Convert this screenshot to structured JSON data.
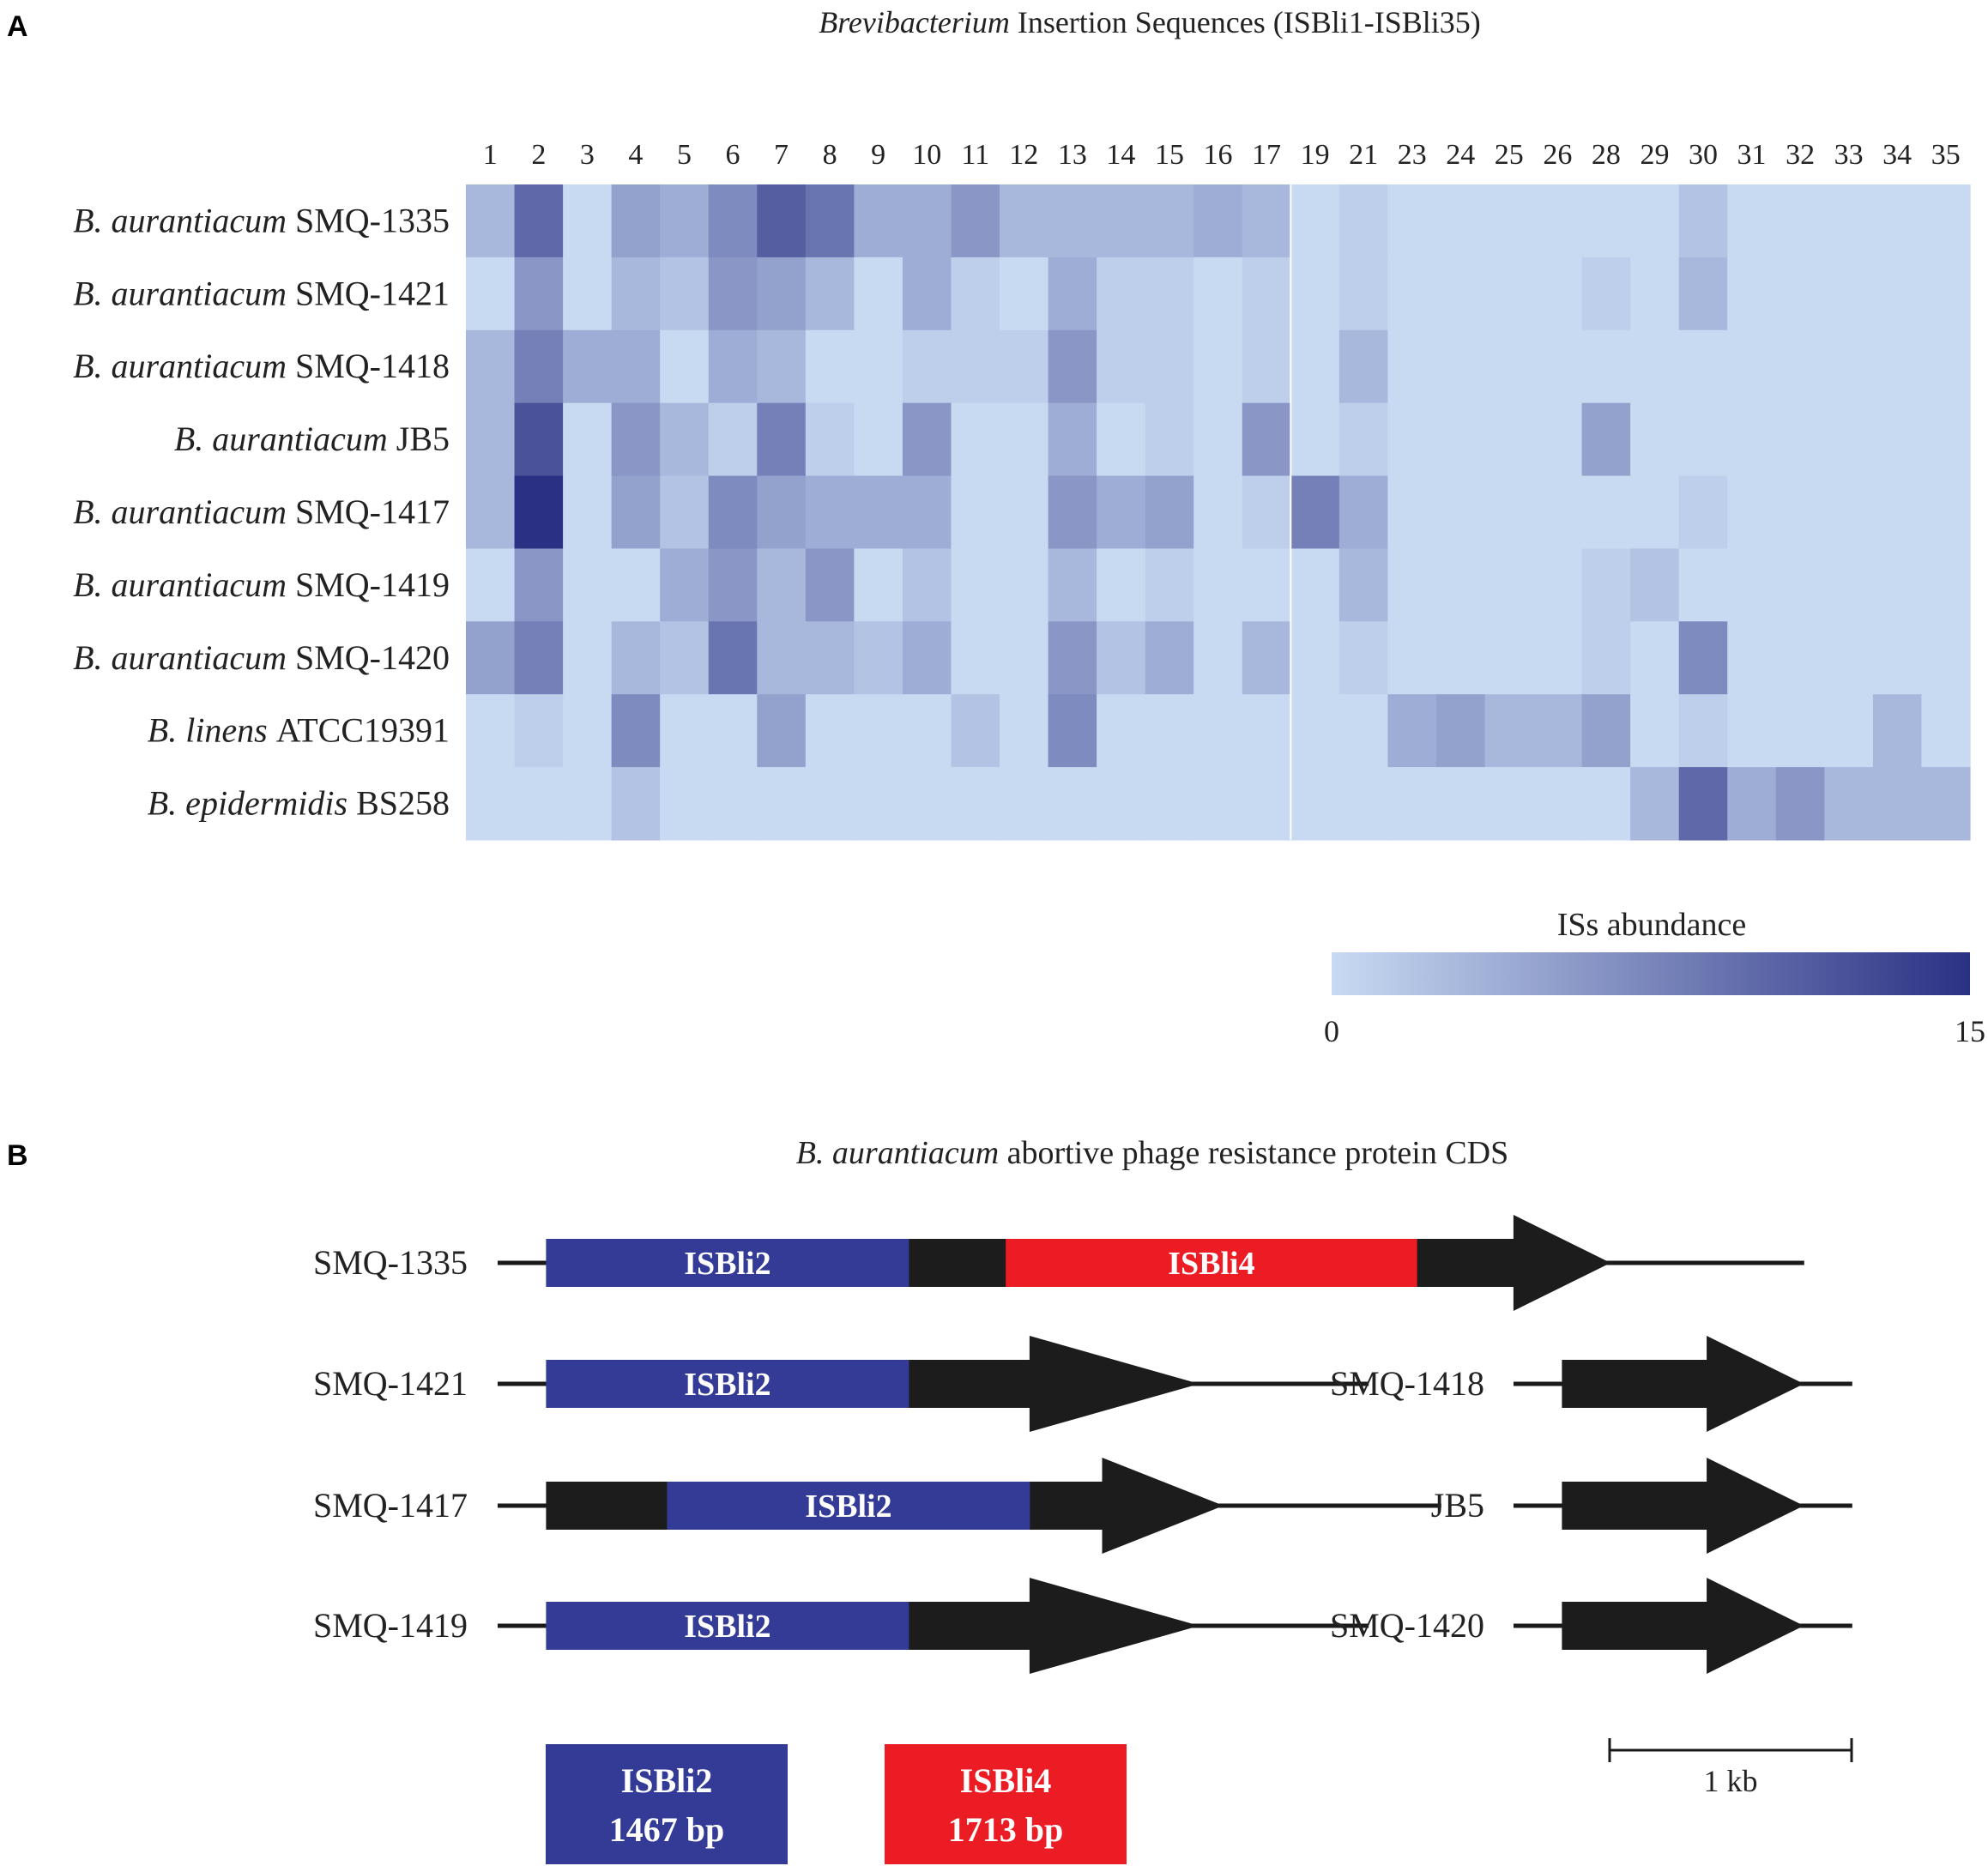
{
  "panel_a": {
    "letter": "A",
    "title_italic": "Brevibacterium",
    "title_rest": " Insertion Sequences (ISBli1-ISBli35)"
  },
  "panel_b": {
    "letter": "B",
    "title_italic": "B. aurantiacum",
    "title_rest": " abortive phage resistance protein CDS"
  },
  "colors": {
    "low": "#c8daf2",
    "high": "#2a3184",
    "isbli2": "#333b97",
    "isbli4": "#ec1c24",
    "cds": "#1c1c1c",
    "line": "#1a1a1a"
  },
  "chart_data": [
    {
      "type": "heatmap",
      "title": "Brevibacterium Insertion Sequences (ISBli1-ISBli35)",
      "columns": [
        "1",
        "2",
        "3",
        "4",
        "5",
        "6",
        "7",
        "8",
        "9",
        "10",
        "11",
        "12",
        "13",
        "14",
        "15",
        "16",
        "17",
        "19",
        "21",
        "23",
        "24",
        "25",
        "26",
        "28",
        "29",
        "30",
        "31",
        "32",
        "33",
        "34",
        "35"
      ],
      "rows": [
        {
          "species": "B. aurantiacum",
          "strain": "SMQ-1335"
        },
        {
          "species": "B. aurantiacum",
          "strain": "SMQ-1421"
        },
        {
          "species": "B. aurantiacum",
          "strain": "SMQ-1418"
        },
        {
          "species": "B. aurantiacum",
          "strain": "JB5"
        },
        {
          "species": "B. aurantiacum",
          "strain": "SMQ-1417"
        },
        {
          "species": "B. aurantiacum",
          "strain": "SMQ-1419"
        },
        {
          "species": "B. aurantiacum",
          "strain": "SMQ-1420"
        },
        {
          "species": "B. linens",
          "strain": "ATCC19391"
        },
        {
          "species": "B. epidermidis",
          "strain": "BS258"
        }
      ],
      "values": [
        [
          3,
          10,
          0,
          5,
          4,
          7,
          11,
          9,
          4,
          4,
          6,
          3,
          3,
          3,
          3,
          4,
          3,
          0,
          1,
          0,
          0,
          0,
          0,
          0,
          0,
          2,
          0,
          0,
          0,
          0,
          0
        ],
        [
          0,
          6,
          0,
          3,
          2,
          6,
          5,
          3,
          0,
          4,
          1,
          0,
          4,
          1,
          1,
          0,
          1,
          0,
          1,
          0,
          0,
          0,
          0,
          1,
          0,
          3,
          0,
          0,
          0,
          0,
          0
        ],
        [
          3,
          8,
          4,
          4,
          0,
          4,
          3,
          0,
          0,
          1,
          1,
          1,
          6,
          1,
          1,
          0,
          1,
          0,
          3,
          0,
          0,
          0,
          0,
          0,
          0,
          0,
          0,
          0,
          0,
          0,
          0
        ],
        [
          3,
          12,
          0,
          6,
          3,
          1,
          8,
          1,
          0,
          6,
          0,
          0,
          4,
          0,
          1,
          0,
          6,
          0,
          1,
          0,
          0,
          0,
          0,
          5,
          0,
          0,
          0,
          0,
          0,
          0,
          0
        ],
        [
          3,
          15,
          0,
          5,
          2,
          7,
          5,
          4,
          4,
          4,
          0,
          0,
          6,
          4,
          5,
          0,
          1,
          8,
          4,
          0,
          0,
          0,
          0,
          0,
          0,
          1,
          0,
          0,
          0,
          0,
          0
        ],
        [
          0,
          6,
          0,
          0,
          4,
          6,
          3,
          6,
          0,
          2,
          0,
          0,
          3,
          0,
          1,
          0,
          0,
          0,
          3,
          0,
          0,
          0,
          0,
          1,
          2,
          0,
          0,
          0,
          0,
          0,
          0
        ],
        [
          5,
          8,
          0,
          3,
          2,
          9,
          3,
          3,
          2,
          4,
          0,
          0,
          6,
          2,
          4,
          0,
          3,
          0,
          1,
          0,
          0,
          0,
          0,
          1,
          0,
          7,
          0,
          0,
          0,
          0,
          0
        ],
        [
          0,
          1,
          0,
          7,
          0,
          0,
          5,
          0,
          0,
          0,
          2,
          0,
          7,
          0,
          0,
          0,
          0,
          0,
          0,
          4,
          5,
          3,
          3,
          5,
          0,
          1,
          0,
          0,
          0,
          3,
          0
        ],
        [
          0,
          0,
          0,
          2,
          0,
          0,
          0,
          0,
          0,
          0,
          0,
          0,
          0,
          0,
          0,
          0,
          0,
          0,
          0,
          0,
          0,
          0,
          0,
          0,
          3,
          10,
          4,
          6,
          3,
          3,
          3
        ]
      ],
      "colorbar": {
        "label": "ISs abundance",
        "min": 0,
        "max": 15,
        "min_label": "0",
        "max_label": "15"
      }
    },
    {
      "type": "gene-map",
      "title": "B. aurantiacum abortive phage resistance protein CDS",
      "units": "kb",
      "scale_bar_label": "1 kb",
      "tracks": [
        {
          "strain": "SMQ-1335",
          "start": 0,
          "end": 5.4,
          "segments": [
            {
              "label": "ISBli2",
              "kind": "isbli2",
              "start": 0.2,
              "end": 1.7
            },
            {
              "label": "",
              "kind": "cds",
              "start": 1.7,
              "end": 2.1
            },
            {
              "label": "ISBli4",
              "kind": "isbli4",
              "start": 2.1,
              "end": 3.8
            },
            {
              "label": "",
              "kind": "cds",
              "start": 3.8,
              "end": 4.2
            },
            {
              "label": "",
              "kind": "arrow",
              "start": 4.2,
              "end": 4.6
            }
          ]
        },
        {
          "strain": "SMQ-1421",
          "start": 0,
          "end": 3.6,
          "segments": [
            {
              "label": "ISBli2",
              "kind": "isbli2",
              "start": 0.2,
              "end": 1.7
            },
            {
              "label": "",
              "kind": "cds",
              "start": 1.7,
              "end": 2.2
            },
            {
              "label": "",
              "kind": "arrow",
              "start": 2.2,
              "end": 2.9
            }
          ]
        },
        {
          "strain": "SMQ-1417",
          "start": 0,
          "end": 3.9,
          "segments": [
            {
              "label": "",
              "kind": "cds",
              "start": 0.2,
              "end": 0.7
            },
            {
              "label": "ISBli2",
              "kind": "isbli2",
              "start": 0.7,
              "end": 2.2
            },
            {
              "label": "",
              "kind": "cds",
              "start": 2.2,
              "end": 2.5
            },
            {
              "label": "",
              "kind": "arrow",
              "start": 2.5,
              "end": 3.0
            }
          ]
        },
        {
          "strain": "SMQ-1419",
          "start": 0,
          "end": 3.6,
          "segments": [
            {
              "label": "ISBli2",
              "kind": "isbli2",
              "start": 0.2,
              "end": 1.7
            },
            {
              "label": "",
              "kind": "cds",
              "start": 1.7,
              "end": 2.2
            },
            {
              "label": "",
              "kind": "arrow",
              "start": 2.2,
              "end": 2.9
            }
          ]
        },
        {
          "strain": "SMQ-1418",
          "start": 0,
          "end": 1.4,
          "segments": [
            {
              "label": "",
              "kind": "cds",
              "start": 0.2,
              "end": 0.8
            },
            {
              "label": "",
              "kind": "arrow",
              "start": 0.8,
              "end": 1.2
            }
          ]
        },
        {
          "strain": "JB5",
          "start": 0,
          "end": 1.4,
          "segments": [
            {
              "label": "",
              "kind": "cds",
              "start": 0.2,
              "end": 0.8
            },
            {
              "label": "",
              "kind": "arrow",
              "start": 0.8,
              "end": 1.2
            }
          ]
        },
        {
          "strain": "SMQ-1420",
          "start": 0,
          "end": 1.4,
          "segments": [
            {
              "label": "",
              "kind": "cds",
              "start": 0.2,
              "end": 0.8
            },
            {
              "label": "",
              "kind": "arrow",
              "start": 0.8,
              "end": 1.2
            }
          ]
        }
      ],
      "legend": [
        {
          "name": "ISBli2",
          "size": "1467 bp",
          "kind": "isbli2"
        },
        {
          "name": "ISBli4",
          "size": "1713 bp",
          "kind": "isbli4"
        }
      ]
    }
  ]
}
